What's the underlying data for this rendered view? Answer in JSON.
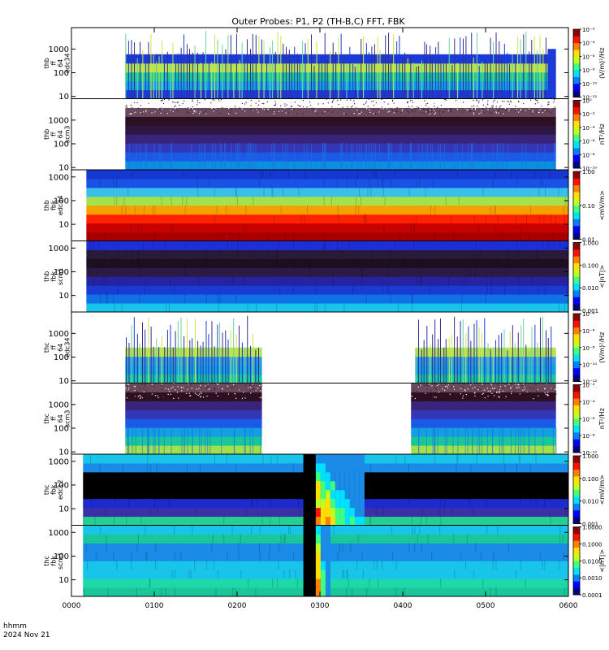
{
  "chart_data": {
    "type": "heatmap",
    "title": "Outer Probes: P1, P2 (TH-B,C) FFT, FBK",
    "footer": {
      "time_unit": "hhmm",
      "date": "2024 Nov 21"
    },
    "x_ticks": [
      "0000",
      "0100",
      "0200",
      "0300",
      "0400",
      "0500",
      "0600"
    ],
    "xlim": [
      0,
      6
    ],
    "panels": [
      {
        "id": "thb_ff_e",
        "label": [
          "thb",
          "ff",
          "64",
          "edc34"
        ],
        "y_ticks": [
          "10",
          "100",
          "1000"
        ],
        "ylim": [
          8,
          8000
        ],
        "colorbar": {
          "label": "(V/m)²/Hz",
          "ticks": [
            "10⁻¹²",
            "10⁻¹⁰",
            "10⁻⁸",
            "10⁻⁶",
            "10⁻⁴",
            "10⁻³"
          ]
        },
        "coverage": [
          [
            0.65,
            5.75
          ]
        ],
        "spectrum": {
          "mode": "bursty_high",
          "bands": [
            "#1b3bd8",
            "#13a2e0",
            "#19c79b",
            "#b6e34e",
            "#1b3bd8",
            "#2338c8",
            "#2a2f9e",
            "#ffffff"
          ]
        },
        "tail": {
          "from": 5.75,
          "to": 5.85,
          "colors": [
            "#1b3bd8"
          ]
        }
      },
      {
        "id": "thb_ff_b",
        "label": [
          "thb",
          "ff",
          "64",
          "scm3"
        ],
        "y_ticks": [
          "10",
          "100",
          "1000"
        ],
        "ylim": [
          8,
          8000
        ],
        "colorbar": {
          "label": "nT²/Hz",
          "ticks": [
            "10⁻¹⁰",
            "10⁻⁸",
            "10⁻⁶",
            "10⁻⁴",
            "10⁻²",
            "10⁰"
          ]
        },
        "coverage": [
          [
            0.65,
            5.85
          ]
        ],
        "spectrum": {
          "mode": "noise_top",
          "bands": [
            "#0b8fe0",
            "#1a5ae6",
            "#3436b8",
            "#3a2479",
            "#2e1642",
            "#2d1020",
            "#6a4a5c",
            "#ffffff"
          ]
        }
      },
      {
        "id": "thb_fbk_e",
        "label": [
          "thb",
          "fbk",
          "edc34"
        ],
        "y_ticks": [
          "10",
          "100",
          "1000"
        ],
        "ylim": [
          2,
          2000
        ],
        "colorbar": {
          "label": "<mV/m>",
          "ticks": [
            "0.01",
            "0.10",
            "1.00"
          ]
        },
        "coverage": [
          [
            0.18,
            6.0
          ]
        ],
        "spectrum": {
          "mode": "bands",
          "bands": [
            "#a80000",
            "#c80000",
            "#ff2200",
            "#f6a000",
            "#a6e04a",
            "#39c0e8",
            "#1a52e6",
            "#1438d0"
          ]
        }
      },
      {
        "id": "thb_fbk_b",
        "label": [
          "thb",
          "fbk",
          "scm1"
        ],
        "y_ticks": [
          "10",
          "100",
          "1000"
        ],
        "ylim": [
          2,
          2000
        ],
        "colorbar": {
          "label": "<|nT|>",
          "ticks": [
            "0.001",
            "0.010",
            "0.100",
            "1.000"
          ]
        },
        "coverage": [
          [
            0.18,
            6.0
          ]
        ],
        "spectrum": {
          "mode": "bands",
          "bands": [
            "#19c4ea",
            "#0f72e6",
            "#1a3bd2",
            "#2523a0",
            "#2a1a46",
            "#1e0f20",
            "#2a1a3a",
            "#1c2fd8"
          ]
        }
      },
      {
        "id": "thc_ff_e",
        "label": [
          "thc",
          "ff",
          "64",
          "edc34"
        ],
        "y_ticks": [
          "10",
          "100",
          "1000"
        ],
        "ylim": [
          8,
          8000
        ],
        "colorbar": {
          "label": "(V/m)²/Hz",
          "ticks": [
            "10⁻¹²",
            "10⁻¹⁰",
            "10⁻⁸",
            "10⁻⁶",
            "10⁻⁴"
          ]
        },
        "coverage": [
          [
            0.65,
            2.3
          ],
          [
            4.15,
            5.85
          ]
        ],
        "spectrum": {
          "mode": "bursty_low",
          "bands": [
            "#19c79b",
            "#13a2e0",
            "#2c9be0",
            "#b6e34e",
            "#2a2f9e",
            "#ffffff",
            "#ffffff",
            "#ffffff"
          ]
        }
      },
      {
        "id": "thc_ff_b",
        "label": [
          "thc",
          "ff",
          "64",
          "scm3"
        ],
        "y_ticks": [
          "10",
          "100",
          "1000"
        ],
        "ylim": [
          8,
          8000
        ],
        "colorbar": {
          "label": "nT²/Hz",
          "ticks": [
            "10⁻¹⁰",
            "10⁻⁸",
            "10⁻⁶",
            "10⁻⁴",
            "10⁻²"
          ]
        },
        "coverage": [
          [
            0.65,
            2.3
          ],
          [
            4.1,
            5.85
          ]
        ],
        "spectrum": {
          "mode": "noise_top",
          "bands": [
            "#a2e04a",
            "#19c79b",
            "#139fe0",
            "#1a5ae6",
            "#3436b8",
            "#3a2479",
            "#2d1020",
            "#6a4a5c"
          ]
        }
      },
      {
        "id": "thc_fbk_e",
        "label": [
          "thc",
          "fbk",
          "edc12"
        ],
        "y_ticks": [
          "10",
          "100",
          "1000"
        ],
        "ylim": [
          2,
          2000
        ],
        "colorbar": {
          "label": "<mV/m>",
          "ticks": [
            "0.001",
            "0.010",
            "0.100",
            "1.000"
          ]
        },
        "coverage": [
          [
            0.14,
            6.0
          ]
        ],
        "spectrum": {
          "mode": "event",
          "bands": [
            "#24d090",
            "#3a30a8",
            "#1c2ad0",
            "#000000",
            "#000000",
            "#000000",
            "#1a8be6",
            "#19c4ea"
          ]
        },
        "gap": [
          2.8,
          2.95
        ],
        "event": {
          "from": 2.95,
          "to": 3.5
        }
      },
      {
        "id": "thc_fbk_b",
        "label": [
          "thc",
          "fbk",
          "scm1"
        ],
        "y_ticks": [
          "10",
          "100",
          "1000"
        ],
        "ylim": [
          2,
          2000
        ],
        "colorbar": {
          "label": "<|nT|>",
          "ticks": [
            "0.0001",
            "0.0010",
            "0.0100",
            "0.1000",
            "1.0000"
          ]
        },
        "coverage": [
          [
            0.14,
            6.0
          ]
        ],
        "spectrum": {
          "mode": "event",
          "bands": [
            "#19c79b",
            "#1fd8a8",
            "#19c4ea",
            "#19c4ea",
            "#1a8be6",
            "#1a8be6",
            "#19c79b",
            "#19c4ea"
          ]
        },
        "gap": [
          2.8,
          2.95
        ],
        "event": {
          "from": 2.95,
          "to": 3.1
        }
      }
    ]
  }
}
